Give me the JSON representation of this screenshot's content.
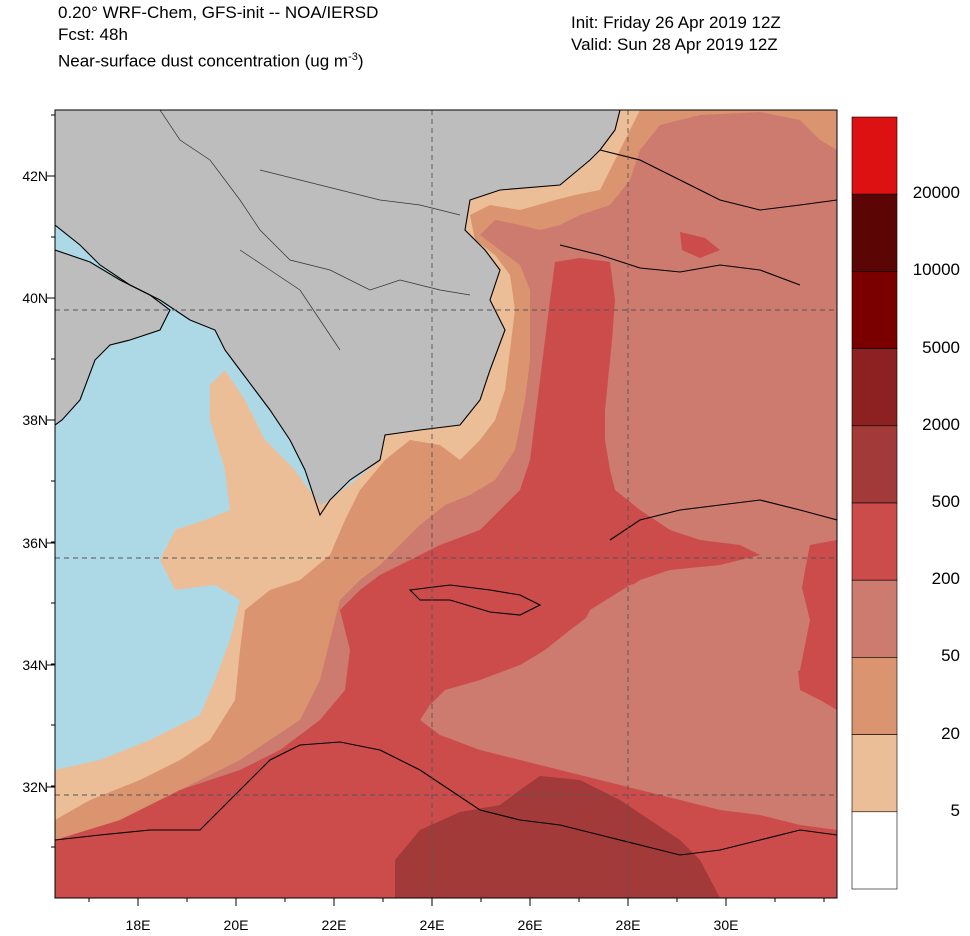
{
  "header": {
    "line1": "0.20° WRF-Chem, GFS-init -- NOA/IERSD",
    "line2": "Fcst: 48h",
    "line3_main": "Near-surface dust concentration (ug m",
    "line3_sup": "-3",
    "line3_end": ")",
    "init": "Init: Friday 26 Apr 2019  12Z",
    "valid": "Valid: Sun 28 Apr 2019  12Z"
  },
  "axes": {
    "lat_labels": [
      "42N",
      "40N",
      "38N",
      "36N",
      "34N",
      "32N"
    ],
    "lon_labels": [
      "18E",
      "20E",
      "22E",
      "24E",
      "26E",
      "28E",
      "30E"
    ]
  },
  "colorbar": {
    "labels": [
      "20000",
      "10000",
      "5000",
      "2000",
      "500",
      "200",
      "50",
      "20",
      "5"
    ],
    "colors": [
      "#dd1111",
      "#5c0505",
      "#7a0000",
      "#8d2020",
      "#a33a3a",
      "#cc4b4b",
      "#cd7a6f",
      "#db9470",
      "#ecbe97",
      "#ffffff"
    ]
  },
  "map_colors": {
    "sea": "#add8e6",
    "land": "#bdbdbd",
    "c5": "#ecbe97",
    "c20": "#db9470",
    "c50": "#cd7a6f",
    "c200": "#cc4b4b",
    "c500": "#a33a3a"
  }
}
